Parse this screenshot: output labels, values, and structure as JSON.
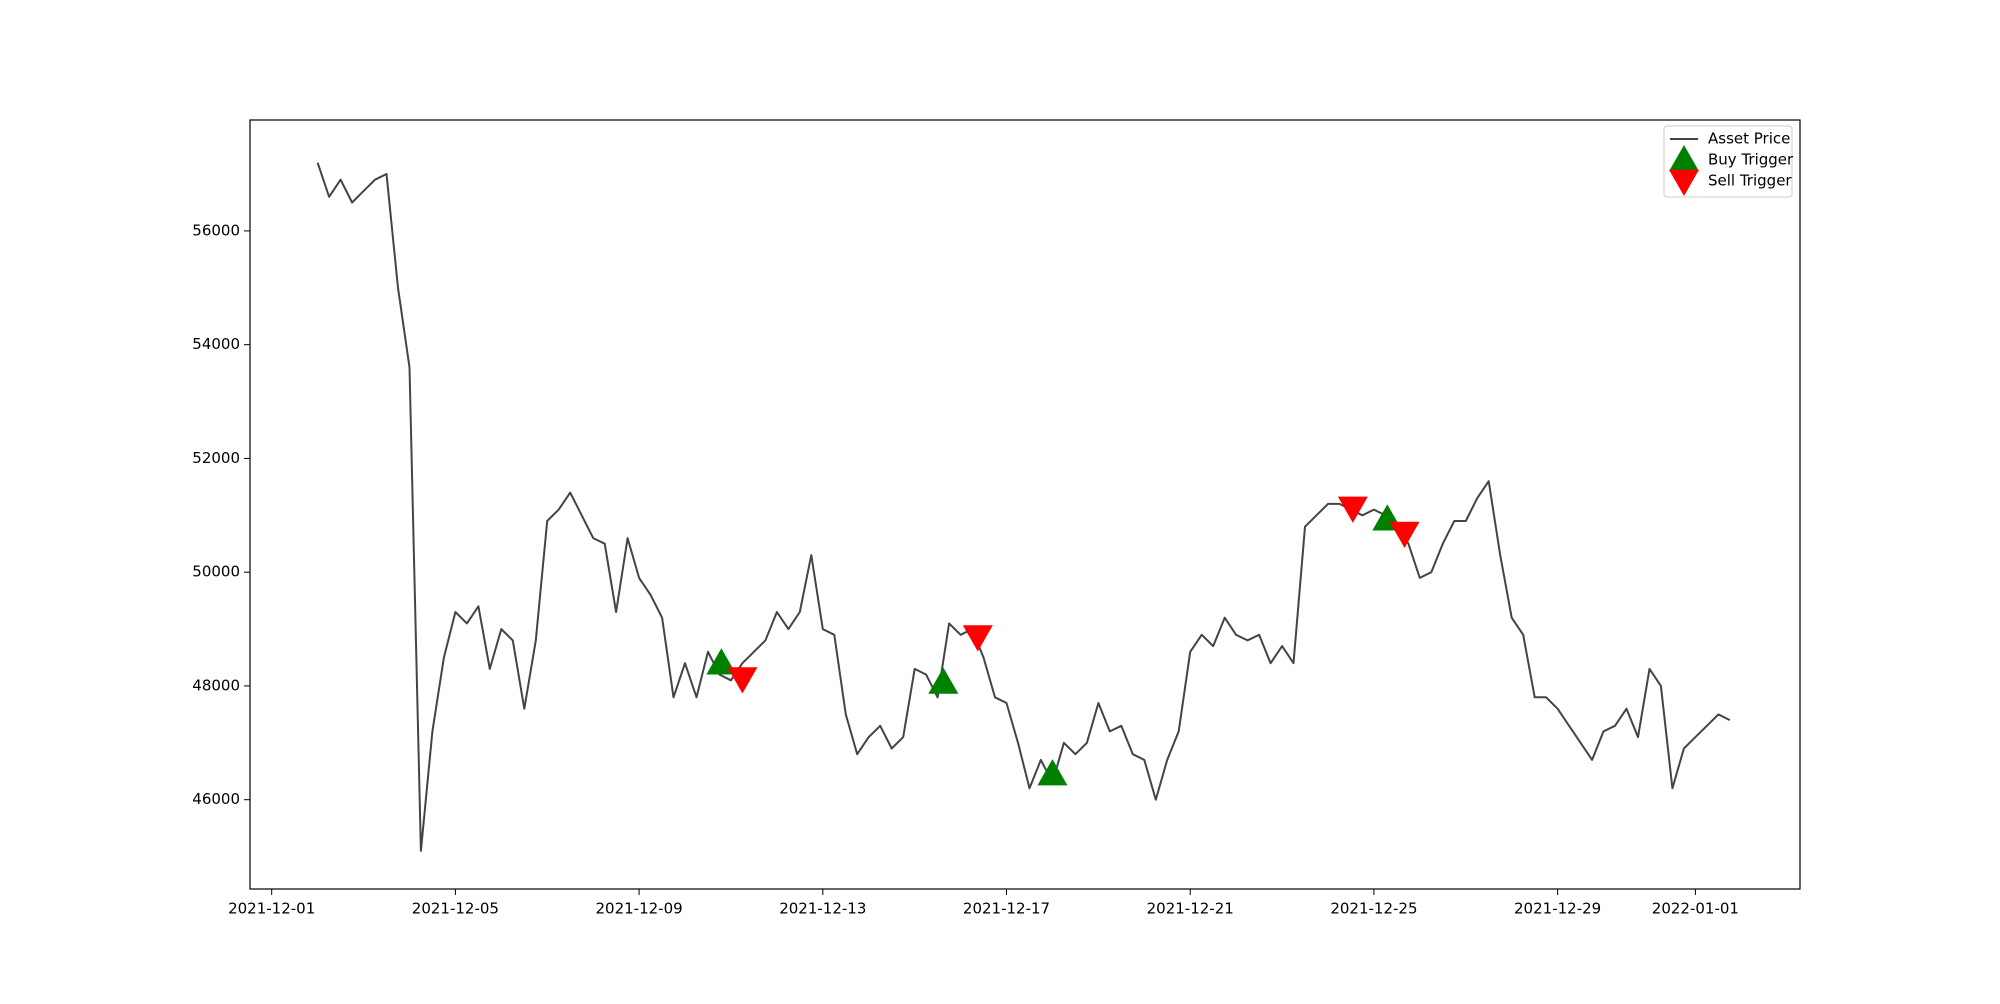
{
  "chart_data": {
    "type": "line",
    "xlim": [
      "2021-11-30T12:40",
      "2022-01-03T06:40"
    ],
    "xticks": [
      "2021-12-01",
      "2021-12-05",
      "2021-12-09",
      "2021-12-13",
      "2021-12-17",
      "2021-12-21",
      "2021-12-25",
      "2021-12-29",
      "2022-01-01"
    ],
    "ylim": [
      44430,
      57950
    ],
    "yticks": [
      46000,
      48000,
      50000,
      52000,
      54000,
      56000
    ],
    "legend": "upper right",
    "series": [
      {
        "name": "Asset Price",
        "color": "#444444",
        "marker": "line",
        "x": [
          "2021-12-02T00:00",
          "2021-12-02T06:00",
          "2021-12-02T12:00",
          "2021-12-02T18:00",
          "2021-12-03T00:00",
          "2021-12-03T06:00",
          "2021-12-03T12:00",
          "2021-12-03T18:00",
          "2021-12-04T00:00",
          "2021-12-04T06:00",
          "2021-12-04T12:00",
          "2021-12-04T18:00",
          "2021-12-05T00:00",
          "2021-12-05T06:00",
          "2021-12-05T12:00",
          "2021-12-05T18:00",
          "2021-12-06T00:00",
          "2021-12-06T06:00",
          "2021-12-06T12:00",
          "2021-12-06T18:00",
          "2021-12-07T00:00",
          "2021-12-07T06:00",
          "2021-12-07T12:00",
          "2021-12-07T18:00",
          "2021-12-08T00:00",
          "2021-12-08T06:00",
          "2021-12-08T12:00",
          "2021-12-08T18:00",
          "2021-12-09T00:00",
          "2021-12-09T06:00",
          "2021-12-09T12:00",
          "2021-12-09T18:00",
          "2021-12-10T00:00",
          "2021-12-10T06:00",
          "2021-12-10T12:00",
          "2021-12-10T18:00",
          "2021-12-11T00:00",
          "2021-12-11T06:00",
          "2021-12-11T12:00",
          "2021-12-11T18:00",
          "2021-12-12T00:00",
          "2021-12-12T06:00",
          "2021-12-12T12:00",
          "2021-12-12T18:00",
          "2021-12-13T00:00",
          "2021-12-13T06:00",
          "2021-12-13T12:00",
          "2021-12-13T18:00",
          "2021-12-14T00:00",
          "2021-12-14T06:00",
          "2021-12-14T12:00",
          "2021-12-14T18:00",
          "2021-12-15T00:00",
          "2021-12-15T06:00",
          "2021-12-15T12:00",
          "2021-12-15T18:00",
          "2021-12-16T00:00",
          "2021-12-16T06:00",
          "2021-12-16T12:00",
          "2021-12-16T18:00",
          "2021-12-17T00:00",
          "2021-12-17T06:00",
          "2021-12-17T12:00",
          "2021-12-17T18:00",
          "2021-12-18T00:00",
          "2021-12-18T06:00",
          "2021-12-18T12:00",
          "2021-12-18T18:00",
          "2021-12-19T00:00",
          "2021-12-19T06:00",
          "2021-12-19T12:00",
          "2021-12-19T18:00",
          "2021-12-20T00:00",
          "2021-12-20T06:00",
          "2021-12-20T12:00",
          "2021-12-20T18:00",
          "2021-12-21T00:00",
          "2021-12-21T06:00",
          "2021-12-21T12:00",
          "2021-12-21T18:00",
          "2021-12-22T00:00",
          "2021-12-22T06:00",
          "2021-12-22T12:00",
          "2021-12-22T18:00",
          "2021-12-23T00:00",
          "2021-12-23T06:00",
          "2021-12-23T12:00",
          "2021-12-23T18:00",
          "2021-12-24T00:00",
          "2021-12-24T06:00",
          "2021-12-24T12:00",
          "2021-12-24T18:00",
          "2021-12-25T00:00",
          "2021-12-25T06:00",
          "2021-12-25T12:00",
          "2021-12-25T18:00",
          "2021-12-26T00:00",
          "2021-12-26T06:00",
          "2021-12-26T12:00",
          "2021-12-26T18:00",
          "2021-12-27T00:00",
          "2021-12-27T06:00",
          "2021-12-27T12:00",
          "2021-12-27T18:00",
          "2021-12-28T00:00",
          "2021-12-28T06:00",
          "2021-12-28T12:00",
          "2021-12-28T18:00",
          "2021-12-29T00:00",
          "2021-12-29T06:00",
          "2021-12-29T12:00",
          "2021-12-29T18:00",
          "2021-12-30T00:00",
          "2021-12-30T06:00",
          "2021-12-30T12:00",
          "2021-12-30T18:00",
          "2021-12-31T00:00",
          "2021-12-31T06:00",
          "2021-12-31T12:00",
          "2021-12-31T18:00",
          "2022-01-01T00:00",
          "2022-01-01T06:00",
          "2022-01-01T12:00",
          "2022-01-01T18:00"
        ],
        "values": [
          57200,
          56600,
          56900,
          56500,
          56700,
          56900,
          57000,
          55000,
          53600,
          45100,
          47200,
          48500,
          49300,
          49100,
          49400,
          48300,
          49000,
          48800,
          47600,
          48800,
          50900,
          51100,
          51400,
          51000,
          50600,
          50500,
          49300,
          50600,
          49900,
          49600,
          49200,
          47800,
          48400,
          47800,
          48600,
          48200,
          48100,
          48400,
          48600,
          48800,
          49300,
          49000,
          49300,
          50300,
          49000,
          48900,
          47500,
          46800,
          47100,
          47300,
          46900,
          47100,
          48300,
          48200,
          47800,
          49100,
          48900,
          49000,
          48500,
          47800,
          47700,
          47000,
          46200,
          46700,
          46300,
          47000,
          46800,
          47000,
          47700,
          47200,
          47300,
          46800,
          46700,
          46000,
          46700,
          47200,
          48600,
          48900,
          48700,
          49200,
          48900,
          48800,
          48900,
          48400,
          48700,
          48400,
          50800,
          51000,
          51200,
          51200,
          51100,
          51000,
          51100,
          51000,
          50800,
          50500,
          49900,
          50000,
          50500,
          50900,
          50900,
          51300,
          51600,
          50300,
          49200,
          48900,
          47800,
          47800,
          47600,
          47300,
          47000,
          46700,
          47200,
          47300,
          47600,
          47100,
          48300,
          48000,
          46200,
          46900,
          47100,
          47300,
          47500,
          47400
        ]
      },
      {
        "name": "Buy Trigger",
        "color": "#008000",
        "marker": "^",
        "x": [
          "2021-12-10T19:00",
          "2021-12-15T15:00",
          "2021-12-18T00:00",
          "2021-12-25T07:00"
        ],
        "values": [
          48400,
          48060,
          46450,
          50930
        ]
      },
      {
        "name": "Sell Trigger",
        "color": "#ff0000",
        "marker": "v",
        "x": [
          "2021-12-11T06:00",
          "2021-12-16T09:00",
          "2021-12-24T13:00",
          "2021-12-25T16:00"
        ],
        "values": [
          48130,
          48870,
          51130,
          50690
        ]
      }
    ]
  }
}
